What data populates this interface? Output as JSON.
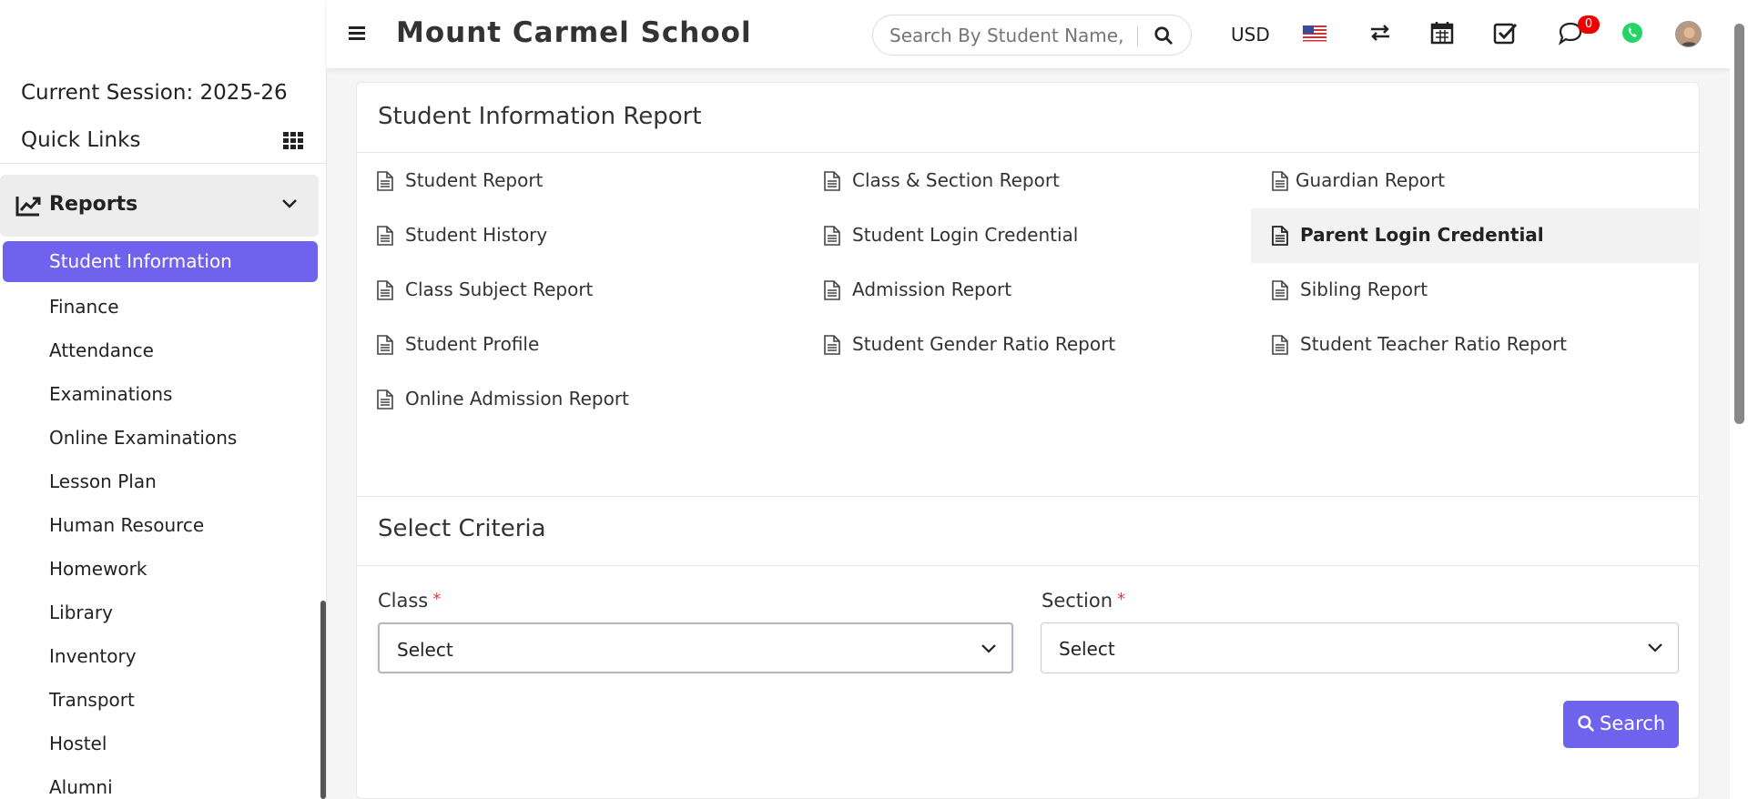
{
  "app": {
    "school_name": "Mount Carmel School",
    "currency": "USD",
    "search_placeholder": "Search By Student Name, Roll Number, Enroll Number, National Id, Local Id Etc.",
    "notification_count": "0"
  },
  "sidebar": {
    "session": "Current Session: 2025-26",
    "quick_links": "Quick Links",
    "section_label": "Reports",
    "active_item": "Student Information",
    "items": [
      "Finance",
      "Attendance",
      "Examinations",
      "Online Examinations",
      "Lesson Plan",
      "Human Resource",
      "Homework",
      "Library",
      "Inventory",
      "Transport",
      "Hostel",
      "Alumni"
    ]
  },
  "report_panel": {
    "title": "Student Information Report",
    "reports": [
      [
        "Student Report",
        "Class & Section Report",
        "Guardian Report"
      ],
      [
        "Student History",
        "Student Login Credential",
        "Parent Login Credential"
      ],
      [
        "Class Subject Report",
        "Admission Report",
        "Sibling Report"
      ],
      [
        "Student Profile",
        "Student Gender Ratio Report",
        "Student Teacher Ratio Report"
      ],
      [
        "Online Admission Report"
      ]
    ],
    "selected_report": "Parent Login Credential"
  },
  "criteria": {
    "title": "Select Criteria",
    "class_label": "Class",
    "section_label": "Section",
    "required_mark": "*",
    "class_value": "Select",
    "section_value": "Select",
    "search_button": "Search"
  },
  "colors": {
    "accent": "#6f63ee",
    "badge": "#e00000",
    "whatsapp": "#25d366"
  }
}
